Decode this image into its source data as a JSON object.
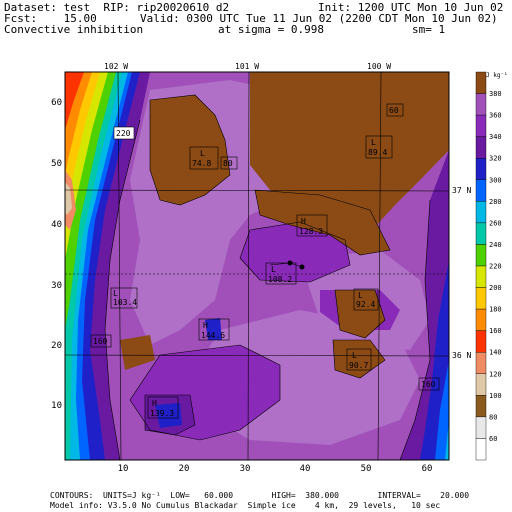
{
  "header": {
    "line1_left": "Dataset: test  RIP: rip20020610 d2",
    "line1_right": "Init: 1200 UTC Mon 10 Jun 02",
    "line2_left": "Fcst:    15.00",
    "line2_right": "Valid: 0300 UTC Tue 11 Jun 02 (2200 CDT Mon 10 Jun 02)",
    "line3_left": "Convective inhibition",
    "line3_mid": "at sigma = 0.998",
    "line3_right": "sm= 1"
  },
  "map": {
    "lon_labels": [
      "102 W",
      "101 W",
      "100 W"
    ],
    "lat_labels": [
      "37 N",
      "36 N"
    ],
    "x_ticks": [
      "10",
      "20",
      "30",
      "40",
      "50",
      "60"
    ],
    "y_ticks": [
      "10",
      "20",
      "30",
      "40",
      "50",
      "60"
    ],
    "labels": [
      {
        "type": "L",
        "value": "74.8"
      },
      {
        "type": "L",
        "value": "89.4"
      },
      {
        "type": "L",
        "value": "103.4"
      },
      {
        "type": "L",
        "value": "108.2"
      },
      {
        "type": "L",
        "value": "92.4"
      },
      {
        "type": "L",
        "value": "90.7"
      },
      {
        "type": "H",
        "value": "128.3"
      },
      {
        "type": "H",
        "value": "144.6"
      },
      {
        "type": "H",
        "value": "139.3"
      }
    ],
    "contour_boxes": [
      "220",
      "80",
      "60",
      "160",
      "160"
    ]
  },
  "colorbar": {
    "unit": "J kg⁻¹",
    "levels": [
      "380",
      "360",
      "340",
      "320",
      "300",
      "280",
      "260",
      "240",
      "220",
      "200",
      "180",
      "160",
      "140",
      "120",
      "100",
      "80",
      "60"
    ],
    "colors": [
      "#ffffff",
      "#e8e8e8",
      "#8a5a1e",
      "#dfc8a8",
      "#f08c64",
      "#ff3300",
      "#ff8c00",
      "#ffc800",
      "#d6e600",
      "#4fd000",
      "#00c8a8",
      "#00b8e6",
      "#0064ff",
      "#2020c8",
      "#6a1aa0",
      "#8a2ab8",
      "#a050b8",
      "#8c4a14"
    ]
  },
  "footer": {
    "line1": "CONTOURS:  UNITS=J kg⁻¹  LOW=   60.000        HIGH=  380.000        INTERVAL=    20.000",
    "line2": "Model info: V3.5.0 No Cumulus Blackadar  Simple ice    4 km,  29 levels,   10 sec"
  }
}
